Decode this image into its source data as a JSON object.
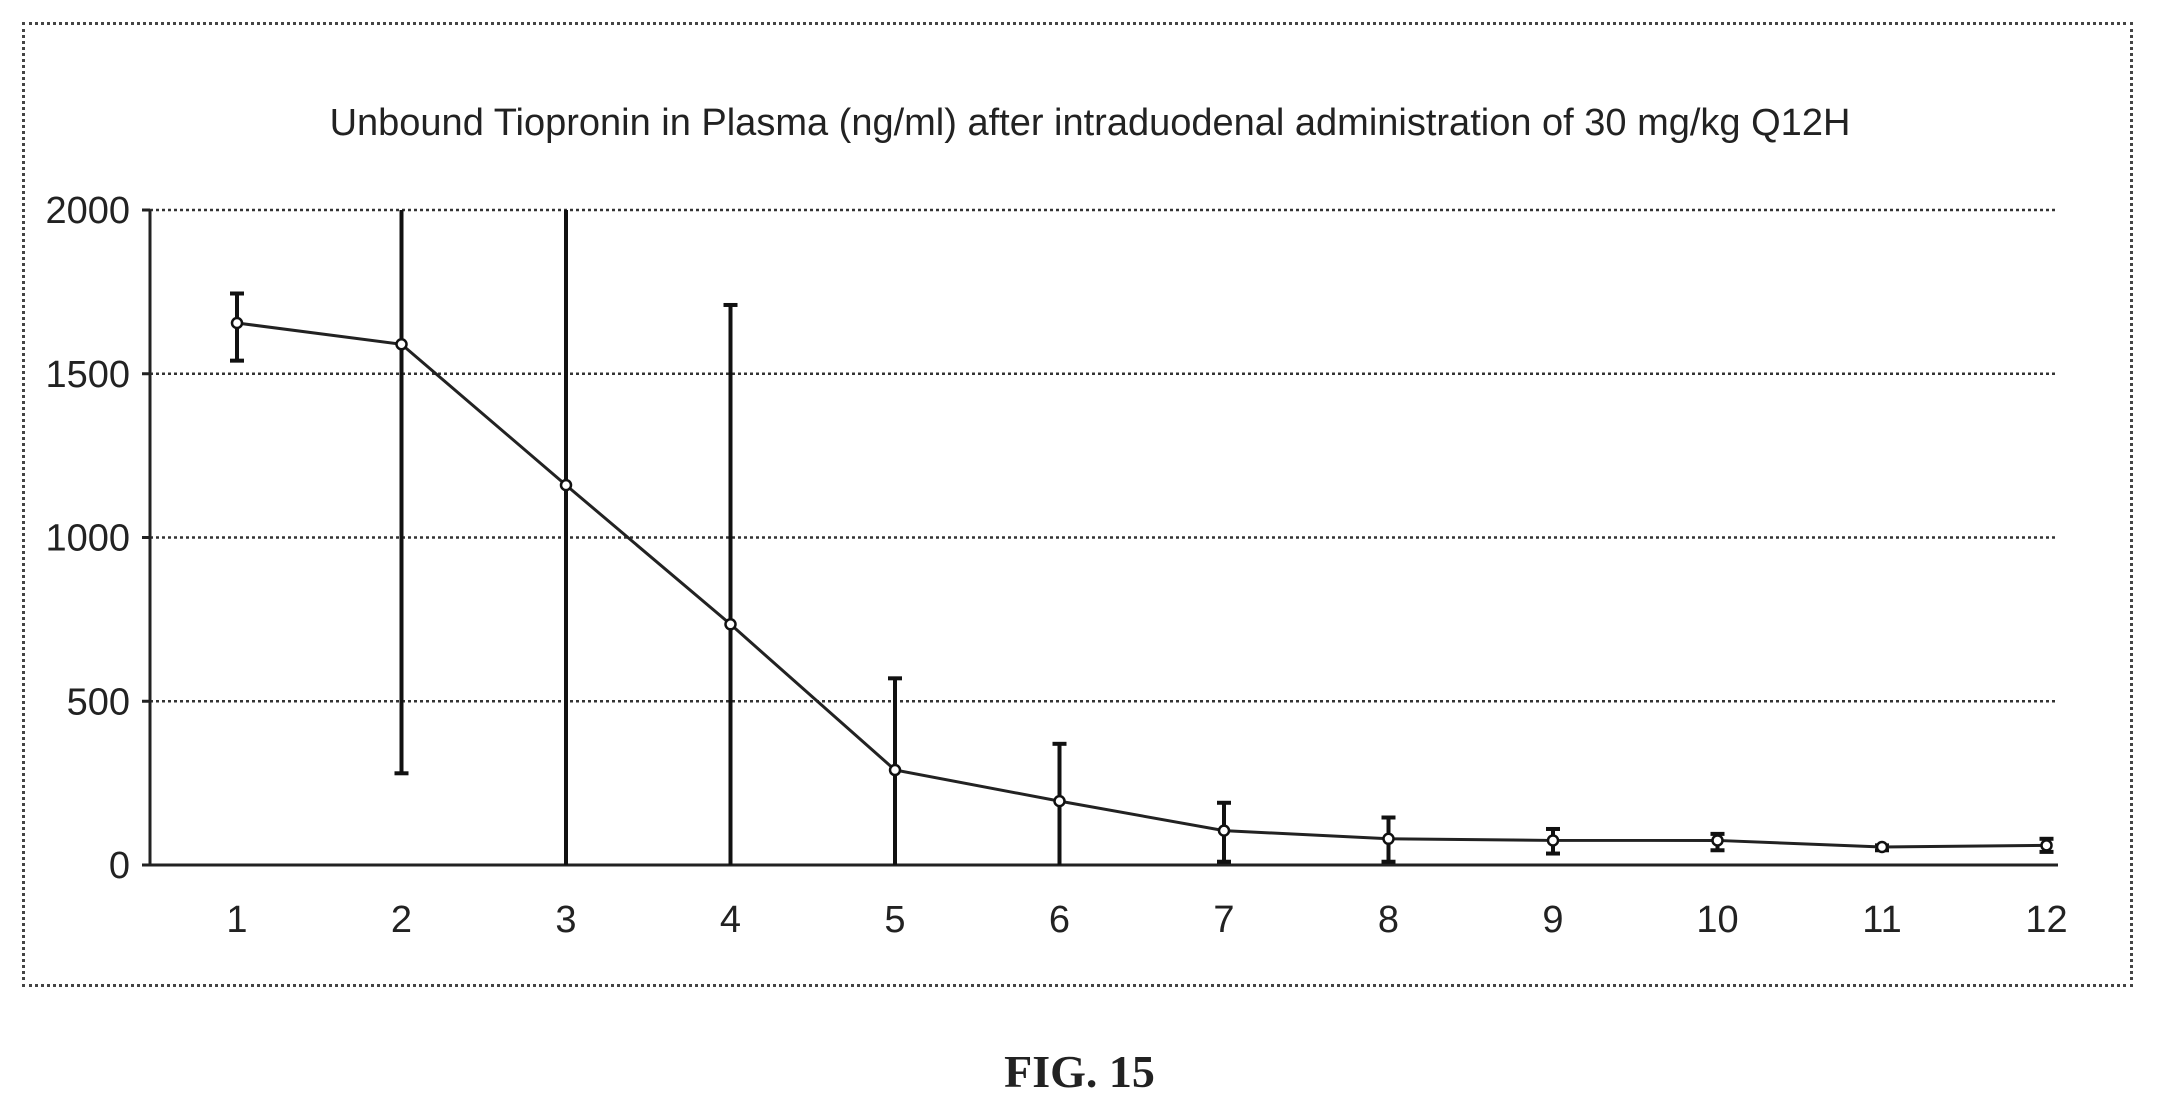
{
  "figure": {
    "caption": "FIG. 15"
  },
  "chart_data": {
    "type": "line",
    "title": "Unbound Tiopronin in Plasma (ng/ml) after intraduodenal administration of 30 mg/kg Q12H",
    "xlabel": "",
    "ylabel": "",
    "categories": [
      "1",
      "2",
      "3",
      "4",
      "5",
      "6",
      "7",
      "8",
      "9",
      "10",
      "11",
      "12"
    ],
    "ylim": [
      0,
      2000
    ],
    "yticks": [
      "0",
      "500",
      "1000",
      "1500",
      "2000"
    ],
    "grid": true,
    "legend": "none",
    "series": [
      {
        "values": [
          1655,
          1590,
          1160,
          735,
          290,
          195,
          105,
          80,
          75,
          75,
          55,
          60
        ],
        "error_upper": [
          1745,
          2000,
          2000,
          1710,
          570,
          370,
          190,
          145,
          110,
          95,
          60,
          80
        ],
        "error_lower": [
          1540,
          280,
          0,
          0,
          0,
          0,
          10,
          10,
          35,
          45,
          45,
          40
        ]
      }
    ]
  }
}
